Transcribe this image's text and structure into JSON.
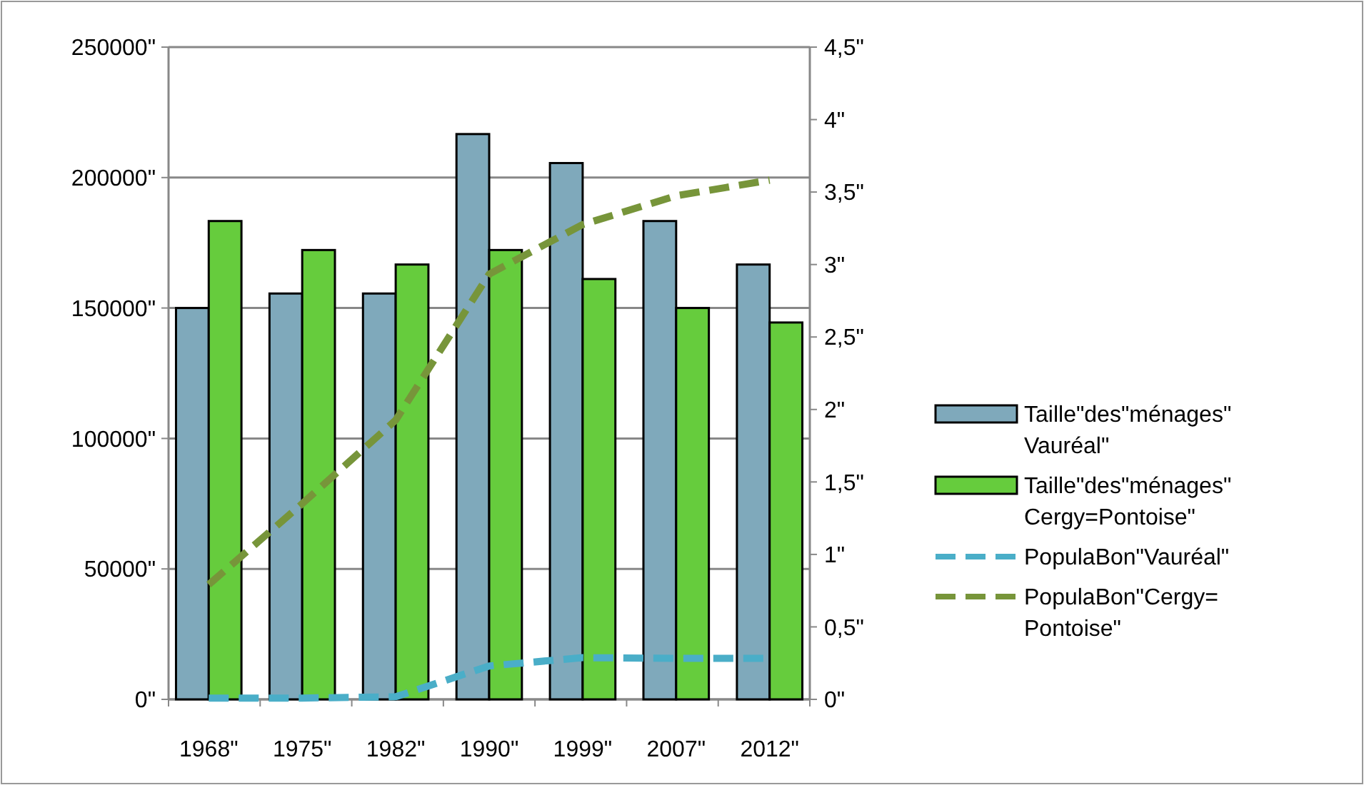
{
  "chart_data": {
    "type": "bar",
    "categories": [
      "1968\"",
      "1975\"",
      "1982\"",
      "1990\"",
      "1999\"",
      "2007\"",
      "2012\""
    ],
    "series": [
      {
        "name": "Taille\"des\"ménages\" Vauréal\"",
        "axis": "y2",
        "color": "#7fa9bb",
        "values": [
          2.7,
          2.8,
          2.8,
          3.9,
          3.7,
          3.3,
          3.0
        ]
      },
      {
        "name": "Taille\"des\"ménages\" Cergy=Pontoise\"",
        "axis": "y2",
        "color": "#66cc3d",
        "values": [
          3.3,
          3.1,
          3.0,
          3.1,
          2.9,
          2.7,
          2.6
        ]
      },
      {
        "name": "PopulaBon\"Vauréal\"",
        "type": "line",
        "color": "#4aaec8",
        "line_style": "dashed",
        "values": [
          500,
          500,
          1000,
          12800,
          16000,
          15700,
          15700
        ]
      },
      {
        "name": "PopulaBon\"Cergy=Pontoise\"",
        "type": "line",
        "color": "#77953a",
        "line_style": "dashed",
        "values": [
          44000,
          75000,
          107000,
          163000,
          182000,
          193000,
          199000
        ]
      }
    ],
    "ylim": [
      0,
      250000
    ],
    "yticks": [
      {
        "value": 0,
        "label": "0\""
      },
      {
        "value": 50000,
        "label": "50000\""
      },
      {
        "value": 100000,
        "label": "100000\""
      },
      {
        "value": 150000,
        "label": "150000\""
      },
      {
        "value": 200000,
        "label": "200000\""
      },
      {
        "value": 250000,
        "label": "250000\""
      }
    ],
    "y2lim": [
      0,
      4.5
    ],
    "y2ticks": [
      {
        "value": 0,
        "label": "0\""
      },
      {
        "value": 0.5,
        "label": "0,5\""
      },
      {
        "value": 1,
        "label": "1\""
      },
      {
        "value": 1.5,
        "label": "1,5\""
      },
      {
        "value": 2,
        "label": "2\""
      },
      {
        "value": 2.5,
        "label": "2,5\""
      },
      {
        "value": 3,
        "label": "3\""
      },
      {
        "value": 3.5,
        "label": "3,5\""
      },
      {
        "value": 4,
        "label": "4\""
      },
      {
        "value": 4.5,
        "label": "4,5\""
      }
    ],
    "grid": "y",
    "legend": "right"
  }
}
